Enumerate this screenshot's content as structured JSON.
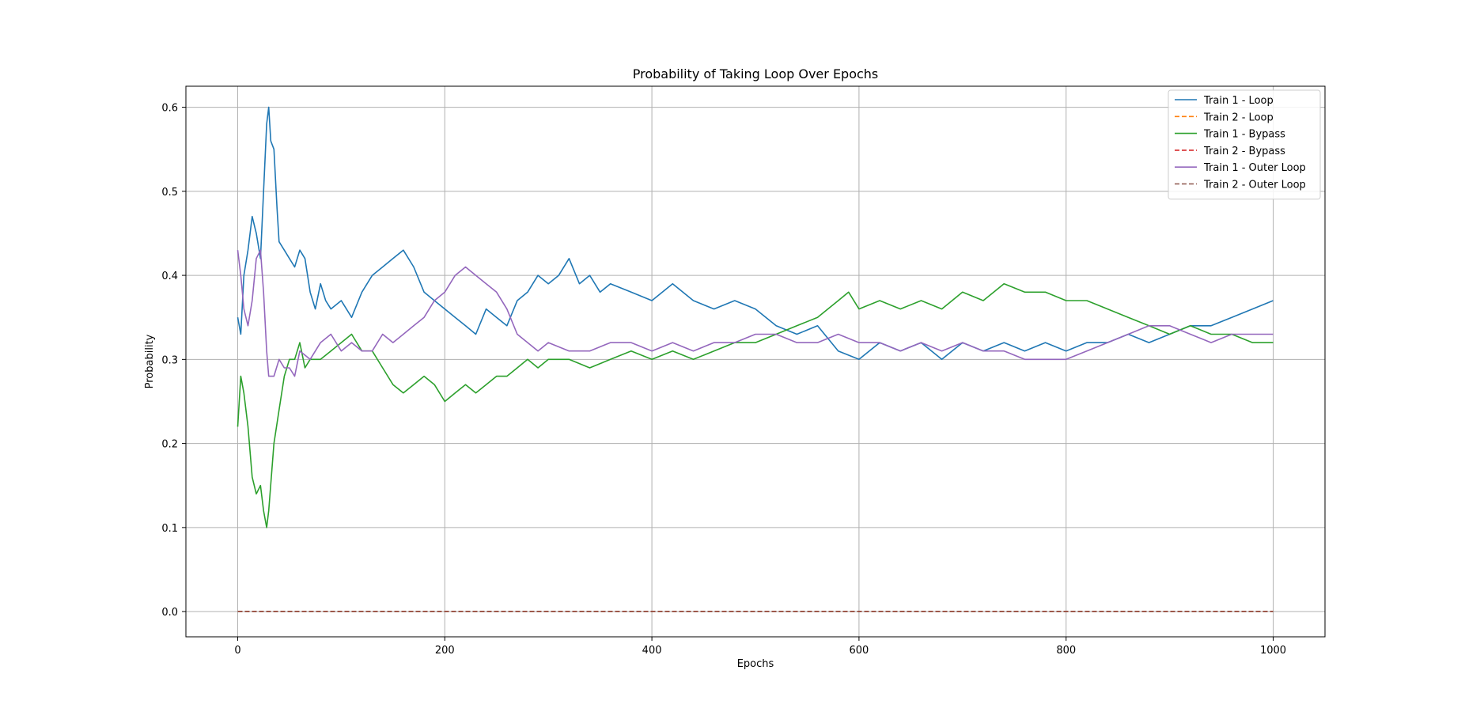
{
  "chart_data": {
    "type": "line",
    "title": "Probability of Taking Loop Over Epochs",
    "xlabel": "Epochs",
    "ylabel": "Probability",
    "xlim": [
      -50,
      1050
    ],
    "ylim": [
      -0.03,
      0.625
    ],
    "xticks": [
      0,
      200,
      400,
      600,
      800,
      1000
    ],
    "yticks": [
      0.0,
      0.1,
      0.2,
      0.3,
      0.4,
      0.5,
      0.6
    ],
    "grid": true,
    "legend_position": "upper-right",
    "series": [
      {
        "name": "Train 1 - Loop",
        "color": "#1f77b4",
        "dash": "solid",
        "x": [
          0,
          3,
          6,
          10,
          14,
          18,
          22,
          25,
          28,
          30,
          32,
          35,
          38,
          40,
          45,
          50,
          55,
          60,
          65,
          70,
          75,
          80,
          85,
          90,
          100,
          110,
          120,
          130,
          140,
          150,
          160,
          170,
          180,
          190,
          200,
          210,
          220,
          230,
          240,
          250,
          260,
          270,
          280,
          290,
          300,
          310,
          320,
          330,
          340,
          350,
          360,
          380,
          400,
          420,
          440,
          460,
          480,
          500,
          520,
          540,
          560,
          580,
          600,
          620,
          640,
          660,
          680,
          700,
          720,
          740,
          760,
          780,
          800,
          820,
          840,
          860,
          880,
          900,
          920,
          940,
          960,
          980,
          1000
        ],
        "y": [
          0.35,
          0.33,
          0.4,
          0.43,
          0.47,
          0.45,
          0.42,
          0.5,
          0.58,
          0.6,
          0.56,
          0.55,
          0.48,
          0.44,
          0.43,
          0.42,
          0.41,
          0.43,
          0.42,
          0.38,
          0.36,
          0.39,
          0.37,
          0.36,
          0.37,
          0.35,
          0.38,
          0.4,
          0.41,
          0.42,
          0.43,
          0.41,
          0.38,
          0.37,
          0.36,
          0.35,
          0.34,
          0.33,
          0.36,
          0.35,
          0.34,
          0.37,
          0.38,
          0.4,
          0.39,
          0.4,
          0.42,
          0.39,
          0.4,
          0.38,
          0.39,
          0.38,
          0.37,
          0.39,
          0.37,
          0.36,
          0.37,
          0.36,
          0.34,
          0.33,
          0.34,
          0.31,
          0.3,
          0.32,
          0.31,
          0.32,
          0.3,
          0.32,
          0.31,
          0.32,
          0.31,
          0.32,
          0.31,
          0.32,
          0.32,
          0.33,
          0.32,
          0.33,
          0.34,
          0.34,
          0.35,
          0.36,
          0.37
        ]
      },
      {
        "name": "Train 2 - Loop",
        "color": "#ff7f0e",
        "dash": "dashed",
        "x": [
          0,
          1000
        ],
        "y": [
          0.0,
          0.0
        ]
      },
      {
        "name": "Train 1 - Bypass",
        "color": "#2ca02c",
        "dash": "solid",
        "x": [
          0,
          3,
          6,
          10,
          14,
          18,
          22,
          25,
          28,
          30,
          35,
          40,
          45,
          50,
          55,
          60,
          65,
          70,
          80,
          90,
          100,
          110,
          120,
          130,
          140,
          150,
          160,
          170,
          180,
          190,
          200,
          210,
          220,
          230,
          240,
          250,
          260,
          270,
          280,
          290,
          300,
          320,
          340,
          360,
          380,
          400,
          420,
          440,
          460,
          480,
          500,
          520,
          540,
          560,
          580,
          590,
          600,
          620,
          640,
          660,
          680,
          700,
          720,
          740,
          760,
          780,
          800,
          820,
          840,
          860,
          880,
          900,
          920,
          940,
          960,
          980,
          1000
        ],
        "y": [
          0.22,
          0.28,
          0.26,
          0.22,
          0.16,
          0.14,
          0.15,
          0.12,
          0.1,
          0.12,
          0.2,
          0.24,
          0.28,
          0.3,
          0.3,
          0.32,
          0.29,
          0.3,
          0.3,
          0.31,
          0.32,
          0.33,
          0.31,
          0.31,
          0.29,
          0.27,
          0.26,
          0.27,
          0.28,
          0.27,
          0.25,
          0.26,
          0.27,
          0.26,
          0.27,
          0.28,
          0.28,
          0.29,
          0.3,
          0.29,
          0.3,
          0.3,
          0.29,
          0.3,
          0.31,
          0.3,
          0.31,
          0.3,
          0.31,
          0.32,
          0.32,
          0.33,
          0.34,
          0.35,
          0.37,
          0.38,
          0.36,
          0.37,
          0.36,
          0.37,
          0.36,
          0.38,
          0.37,
          0.39,
          0.38,
          0.38,
          0.37,
          0.37,
          0.36,
          0.35,
          0.34,
          0.33,
          0.34,
          0.33,
          0.33,
          0.32,
          0.32
        ]
      },
      {
        "name": "Train 2 - Bypass",
        "color": "#d62728",
        "dash": "dashed",
        "x": [
          0,
          1000
        ],
        "y": [
          0.0,
          0.0
        ]
      },
      {
        "name": "Train 1 - Outer Loop",
        "color": "#9467bd",
        "dash": "solid",
        "x": [
          0,
          3,
          6,
          10,
          14,
          18,
          22,
          25,
          28,
          30,
          35,
          40,
          45,
          50,
          55,
          60,
          70,
          80,
          90,
          100,
          110,
          120,
          130,
          140,
          150,
          160,
          170,
          180,
          190,
          200,
          210,
          220,
          230,
          240,
          250,
          260,
          270,
          280,
          290,
          300,
          320,
          340,
          360,
          380,
          400,
          420,
          440,
          460,
          480,
          500,
          520,
          540,
          560,
          580,
          600,
          620,
          640,
          660,
          680,
          700,
          720,
          740,
          760,
          780,
          800,
          820,
          840,
          860,
          880,
          900,
          920,
          940,
          960,
          980,
          1000
        ],
        "y": [
          0.43,
          0.4,
          0.36,
          0.34,
          0.37,
          0.42,
          0.43,
          0.38,
          0.31,
          0.28,
          0.28,
          0.3,
          0.29,
          0.29,
          0.28,
          0.31,
          0.3,
          0.32,
          0.33,
          0.31,
          0.32,
          0.31,
          0.31,
          0.33,
          0.32,
          0.33,
          0.34,
          0.35,
          0.37,
          0.38,
          0.4,
          0.41,
          0.4,
          0.39,
          0.38,
          0.36,
          0.33,
          0.32,
          0.31,
          0.32,
          0.31,
          0.31,
          0.32,
          0.32,
          0.31,
          0.32,
          0.31,
          0.32,
          0.32,
          0.33,
          0.33,
          0.32,
          0.32,
          0.33,
          0.32,
          0.32,
          0.31,
          0.32,
          0.31,
          0.32,
          0.31,
          0.31,
          0.3,
          0.3,
          0.3,
          0.31,
          0.32,
          0.33,
          0.34,
          0.34,
          0.33,
          0.32,
          0.33,
          0.33,
          0.33
        ]
      },
      {
        "name": "Train 2 - Outer Loop",
        "color": "#8c564b",
        "dash": "dashed",
        "x": [
          0,
          1000
        ],
        "y": [
          0.0,
          0.0
        ]
      }
    ]
  }
}
